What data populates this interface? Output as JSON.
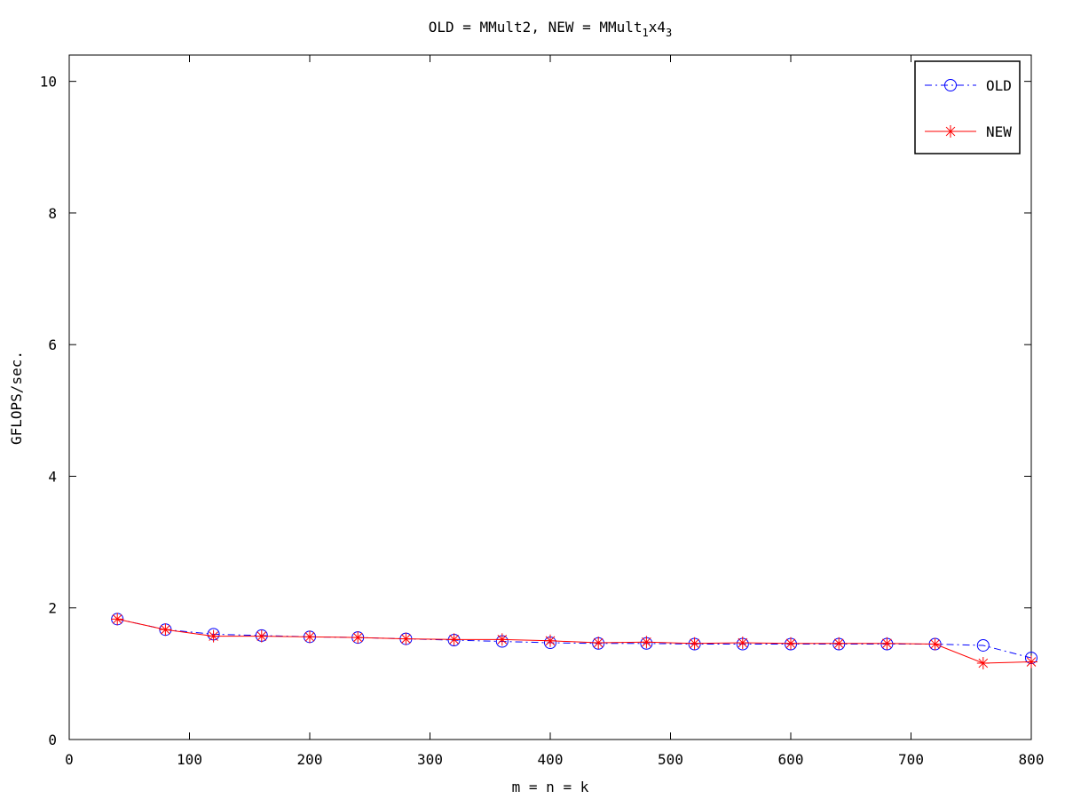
{
  "chart_data": {
    "type": "line",
    "title_parts": {
      "main": "OLD = MMult2, NEW = MMult",
      "sub1": "1",
      "mid": "x4",
      "sub2": "3"
    },
    "xlabel": "m = n = k",
    "ylabel": "GFLOPS/sec.",
    "xlim": [
      0,
      800
    ],
    "ylim": [
      0,
      10.4
    ],
    "xticks": [
      0,
      100,
      200,
      300,
      400,
      500,
      600,
      700,
      800
    ],
    "yticks": [
      0,
      2,
      4,
      6,
      8,
      10
    ],
    "grid": false,
    "legend_position": "top-right",
    "x": [
      40,
      80,
      120,
      160,
      200,
      240,
      280,
      320,
      360,
      400,
      440,
      480,
      520,
      560,
      600,
      640,
      680,
      720,
      760,
      800
    ],
    "series": [
      {
        "name": "OLD",
        "color": "#0000ff",
        "line_style": "dash-dot",
        "marker": "circle",
        "values": [
          1.83,
          1.67,
          1.6,
          1.58,
          1.56,
          1.55,
          1.53,
          1.51,
          1.49,
          1.47,
          1.46,
          1.46,
          1.45,
          1.45,
          1.45,
          1.45,
          1.45,
          1.45,
          1.43,
          1.24
        ]
      },
      {
        "name": "NEW",
        "color": "#ff0000",
        "line_style": "solid",
        "marker": "asterisk",
        "values": [
          1.83,
          1.67,
          1.57,
          1.57,
          1.56,
          1.55,
          1.53,
          1.52,
          1.52,
          1.5,
          1.47,
          1.48,
          1.46,
          1.47,
          1.46,
          1.46,
          1.46,
          1.45,
          1.16,
          1.18
        ]
      }
    ]
  }
}
